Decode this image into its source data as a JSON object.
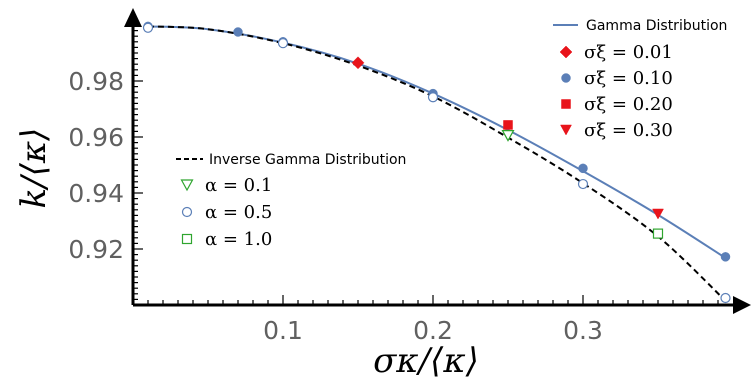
{
  "chart_data": {
    "type": "scatter",
    "x_ticks": [
      "0.1",
      "0.2",
      "0.3"
    ],
    "y_ticks": [
      "0.92",
      "0.94",
      "0.96",
      "0.98"
    ],
    "xlabel": "σκ/⟨κ⟩",
    "ylabel": "k/⟨κ⟩",
    "xlim": [
      0.0,
      0.4
    ],
    "ylim": [
      0.9,
      1.0
    ],
    "curves": [
      {
        "name": "Gamma Distribution",
        "style": "solid",
        "color": "#5b7fb7",
        "x": [
          0.01,
          0.05,
          0.1,
          0.15,
          0.2,
          0.25,
          0.3,
          0.35,
          0.395
        ],
        "y": [
          0.9995,
          0.9985,
          0.9937,
          0.9862,
          0.9755,
          0.9625,
          0.9478,
          0.9322,
          0.9168
        ]
      },
      {
        "name": "Inverse Gamma Distribution",
        "style": "dashed",
        "color": "#000000",
        "x": [
          0.01,
          0.05,
          0.1,
          0.15,
          0.2,
          0.25,
          0.3,
          0.35,
          0.395
        ],
        "y": [
          0.9995,
          0.9985,
          0.9935,
          0.9855,
          0.9745,
          0.9598,
          0.9435,
          0.9245,
          0.9015
        ]
      }
    ],
    "series": [
      {
        "name": "σξ = 0.01",
        "marker": "diamond",
        "color": "#e8141b",
        "filled": true,
        "x": [
          0.15
        ],
        "y": [
          0.9865
        ]
      },
      {
        "name": "σξ = 0.10",
        "marker": "circle",
        "color": "#5b7fb7",
        "filled": true,
        "x": [
          0.01,
          0.07,
          0.1,
          0.2,
          0.3,
          0.395
        ],
        "y": [
          0.9995,
          0.9975,
          0.994,
          0.9755,
          0.9488,
          0.9172
        ]
      },
      {
        "name": "σξ = 0.20",
        "marker": "square",
        "color": "#e8141b",
        "filled": true,
        "x": [
          0.25
        ],
        "y": [
          0.9643
        ]
      },
      {
        "name": "σξ = 0.30",
        "marker": "triangle-down",
        "color": "#e8141b",
        "filled": true,
        "x": [
          0.35
        ],
        "y": [
          0.9325
        ]
      },
      {
        "name": "α = 0.1",
        "marker": "triangle-down",
        "color": "#2fa52f",
        "filled": false,
        "x": [
          0.25
        ],
        "y": [
          0.9605
        ]
      },
      {
        "name": "α = 0.5",
        "marker": "circle",
        "color": "#5b7fb7",
        "filled": false,
        "x": [
          0.01,
          0.1,
          0.2,
          0.3,
          0.395
        ],
        "y": [
          0.999,
          0.9935,
          0.9742,
          0.9432,
          0.9025
        ]
      },
      {
        "name": "α = 1.0",
        "marker": "square",
        "color": "#2fa52f",
        "filled": false,
        "x": [
          0.35
        ],
        "y": [
          0.9255
        ]
      }
    ],
    "legend_right": {
      "line_label": "Gamma Distribution",
      "items": [
        "σξ = 0.01",
        "σξ = 0.10",
        "σξ = 0.20",
        "σξ = 0.30"
      ]
    },
    "legend_left": {
      "line_label": "Inverse Gamma Distribution",
      "items": [
        "α = 0.1",
        "α = 0.5",
        "α = 1.0"
      ]
    }
  }
}
